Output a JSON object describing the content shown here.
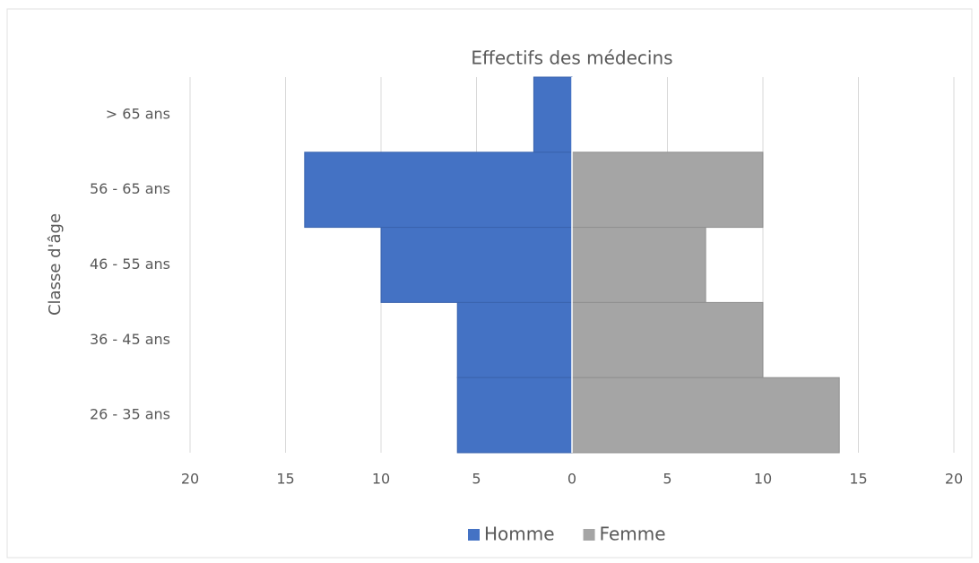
{
  "chart_data": {
    "type": "bar",
    "orientation": "horizontal",
    "title": "Effectifs des médecins",
    "y_label": "Classe d'âge",
    "categories": [
      "> 65 ans",
      "56 - 65 ans",
      "46 - 55 ans",
      "36 - 45 ans",
      "26 - 35 ans"
    ],
    "series": [
      {
        "name": "Homme",
        "color": "#4472c4",
        "values": [
          -2,
          -14,
          -10,
          -6,
          -6
        ]
      },
      {
        "name": "Femme",
        "color": "#a5a5a5",
        "values": [
          0,
          10,
          7,
          10,
          14
        ]
      }
    ],
    "xlim": [
      -20,
      20
    ],
    "xticks": [
      {
        "value": -20,
        "label": "20"
      },
      {
        "value": -15,
        "label": "15"
      },
      {
        "value": -10,
        "label": "10"
      },
      {
        "value": -5,
        "label": "5"
      },
      0,
      5,
      10,
      15,
      20
    ],
    "grid": true,
    "legend": "bottom"
  }
}
